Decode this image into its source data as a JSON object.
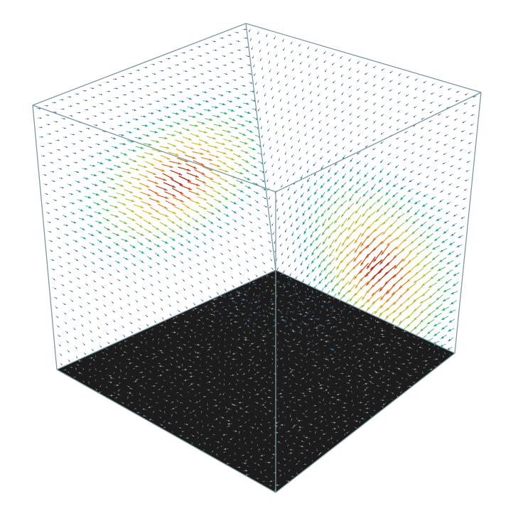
{
  "scene": {
    "background": "#ffffff",
    "box_edge_color": "#7d9aa0",
    "floor_color": "#1c1c1c",
    "floor_arrow_color": "#9aa0a3",
    "colormap": [
      "#2c4f8f",
      "#1b7fa8",
      "#16a392",
      "#35b35a",
      "#9fc43a",
      "#e0b52e",
      "#d9621f",
      "#b7271b"
    ]
  },
  "field": {
    "description_kind": "3d-vector-field",
    "grid_rows": 28,
    "grid_cols": 28,
    "glyph": "arrow"
  }
}
